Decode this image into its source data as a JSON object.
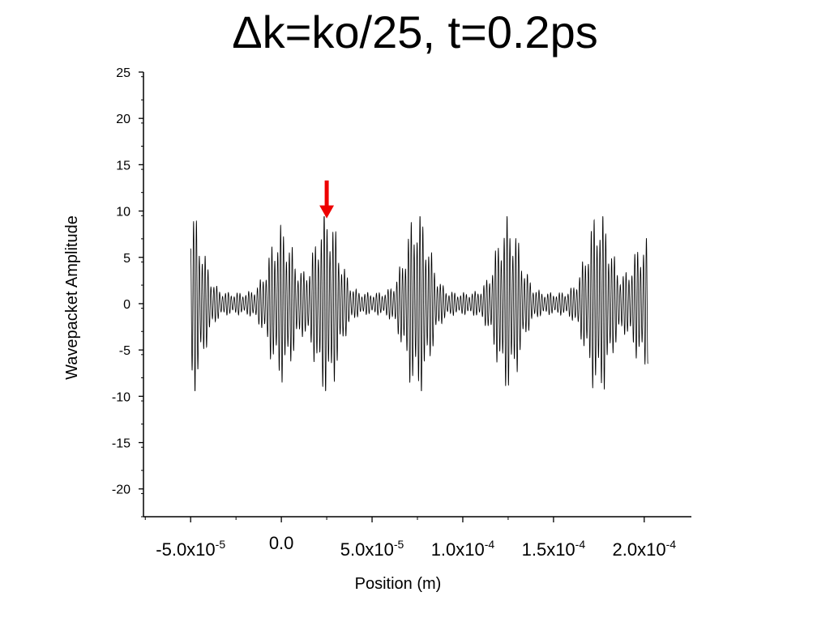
{
  "chart_data": {
    "type": "line",
    "title": "Δk=ko/25, t=0.2ps",
    "xlabel": "Position (m)",
    "ylabel": "Wavepacket Amplitude",
    "xlim": [
      -7.6e-05,
      0.000226
    ],
    "ylim": [
      -23,
      25
    ],
    "y_ticks": [
      25,
      20,
      15,
      10,
      5,
      0,
      -5,
      -10,
      -15,
      -20
    ],
    "x_ticks": [
      {
        "value": -5e-05,
        "base": "-5.0x10",
        "exp": "-5"
      },
      {
        "value": 0,
        "base": "0.0",
        "exp": ""
      },
      {
        "value": 5e-05,
        "base": "5.0x10",
        "exp": "-5"
      },
      {
        "value": 0.0001,
        "base": "1.0x10",
        "exp": "-4"
      },
      {
        "value": 0.00015,
        "base": "1.5x10",
        "exp": "-4"
      },
      {
        "value": 0.0002,
        "base": "2.0x10",
        "exp": "-4"
      }
    ],
    "series": [
      {
        "color": "#000000",
        "signal": {
          "x_start": -5e-05,
          "x_end": 0.000202,
          "packet_centers": [
            -5e-05,
            0,
            2.5e-05,
            7.5e-05,
            0.000125,
            0.000175,
            0.0002
          ],
          "packet_amplitudes": [
            9.2,
            7.5,
            9.2,
            9.2,
            8.5,
            9.2,
            6.0
          ],
          "packet_width": 9e-06,
          "baseline_amplitude": 1.2,
          "oscillation_period": 1.6e-06
        }
      }
    ],
    "annotation": {
      "type": "arrow",
      "color": "#ee0000",
      "x": 2.5e-05,
      "y_from": 13.3,
      "y_to": 9.3
    },
    "grid": false,
    "legend": "none"
  }
}
